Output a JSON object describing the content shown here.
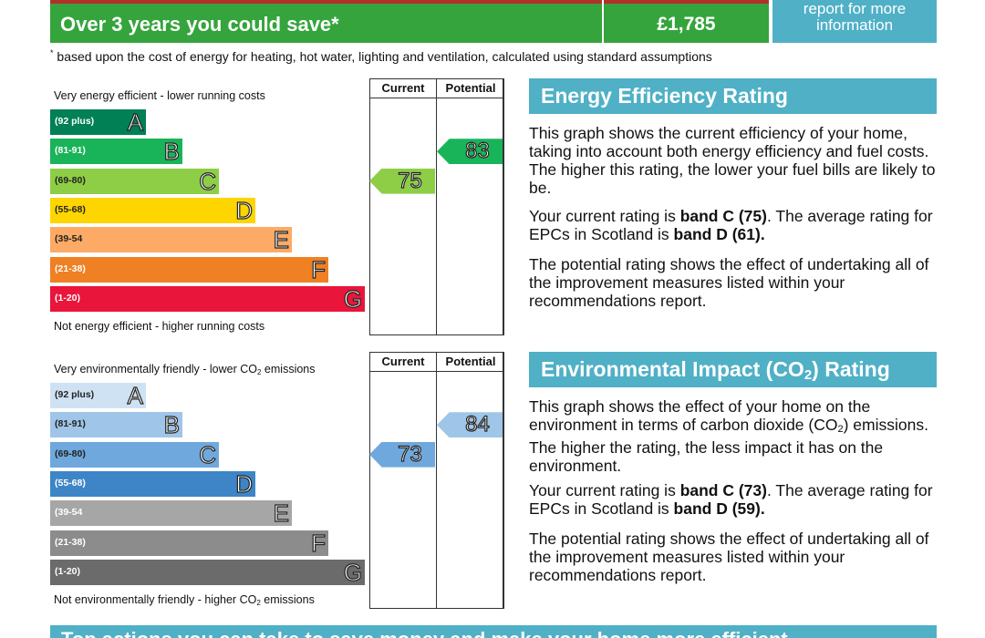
{
  "savings": {
    "label": "Over 3 years you could save*",
    "amount": "£1,785",
    "report_line1": "report for more",
    "report_line2": "information",
    "footnote_mark": "*",
    "footnote": "based upon the cost of energy for heating, hot water, lighting and ventilation, calculated using standard assumptions"
  },
  "energy_chart": {
    "top_label": "Very energy efficient - lower running costs",
    "bottom_label": "Not energy efficient - higher running costs",
    "current_header": "Current",
    "potential_header": "Potential",
    "bands": [
      {
        "range": "(92 plus)",
        "letter": "A",
        "color": "#008054"
      },
      {
        "range": "(81-91)",
        "letter": "B",
        "color": "#19b459"
      },
      {
        "range": "(69-80)",
        "letter": "C",
        "color": "#8dce46"
      },
      {
        "range": "(55-68)",
        "letter": "D",
        "color": "#ffd500"
      },
      {
        "range": "(39-54",
        "letter": "E",
        "color": "#fcaa65"
      },
      {
        "range": "(21-38)",
        "letter": "F",
        "color": "#ef8023"
      },
      {
        "range": "(1-20)",
        "letter": "G",
        "color": "#e9153b"
      }
    ],
    "current": {
      "value": "75",
      "band_index": 2,
      "color": "#8dce46"
    },
    "potential": {
      "value": "83",
      "band_index": 1,
      "color": "#19b459"
    }
  },
  "env_chart": {
    "top_label_pre": "Very environmentally friendly - lower CO",
    "top_label_sub": "2",
    "top_label_post": " emissions",
    "bottom_label_pre": "Not environmentally friendly - higher CO",
    "bottom_label_sub": "2",
    "bottom_label_post": " emissions",
    "current_header": "Current",
    "potential_header": "Potential",
    "bands": [
      {
        "range": "(92 plus)",
        "letter": "A",
        "color": "#cfe2f3"
      },
      {
        "range": "(81-91)",
        "letter": "B",
        "color": "#9fc5e8"
      },
      {
        "range": "(69-80)",
        "letter": "C",
        "color": "#6fa8dc"
      },
      {
        "range": "(55-68)",
        "letter": "D",
        "color": "#3d85c6"
      },
      {
        "range": "(39-54",
        "letter": "E",
        "color": "#a6a6a6"
      },
      {
        "range": "(21-38)",
        "letter": "F",
        "color": "#8c8c8c"
      },
      {
        "range": "(1-20)",
        "letter": "G",
        "color": "#6b6b6b"
      }
    ],
    "current": {
      "value": "73",
      "band_index": 2,
      "color": "#6fa8dc"
    },
    "potential": {
      "value": "84",
      "band_index": 1,
      "color": "#9fc5e8"
    }
  },
  "energy_panel": {
    "title": "Energy Efficiency Rating",
    "p1": "This graph shows the current efficiency of your home, taking into account both energy efficiency and fuel costs. The higher this rating, the lower your fuel bills are likely to be.",
    "p2_pre": "Your current rating is ",
    "p2_b1": "band C (75)",
    "p2_mid": ". The average rating for EPCs in Scotland is ",
    "p2_b2": "band D (61).",
    "p3": "The potential rating shows the effect of undertaking all of the improvement measures listed within your recommendations report."
  },
  "env_panel": {
    "title_pre": "Environmental Impact (CO",
    "title_sub": "2",
    "title_post": ") Rating",
    "p1_pre": "This graph shows the effect of your home on the environment in terms of carbon dioxide (CO",
    "p1_sub": "2",
    "p1_post": ") emissions. The higher the rating, the less impact it has on the environment.",
    "p2_pre": "Your current rating is ",
    "p2_b1": "band C (73)",
    "p2_mid": ". The average rating for EPCs in Scotland is ",
    "p2_b2": "band D (59).",
    "p3": "The potential rating shows the effect of undertaking all of the improvement measures listed within your recommendations report."
  },
  "bottom_banner": "Top actions you can take to save money and make your home more efficient"
}
